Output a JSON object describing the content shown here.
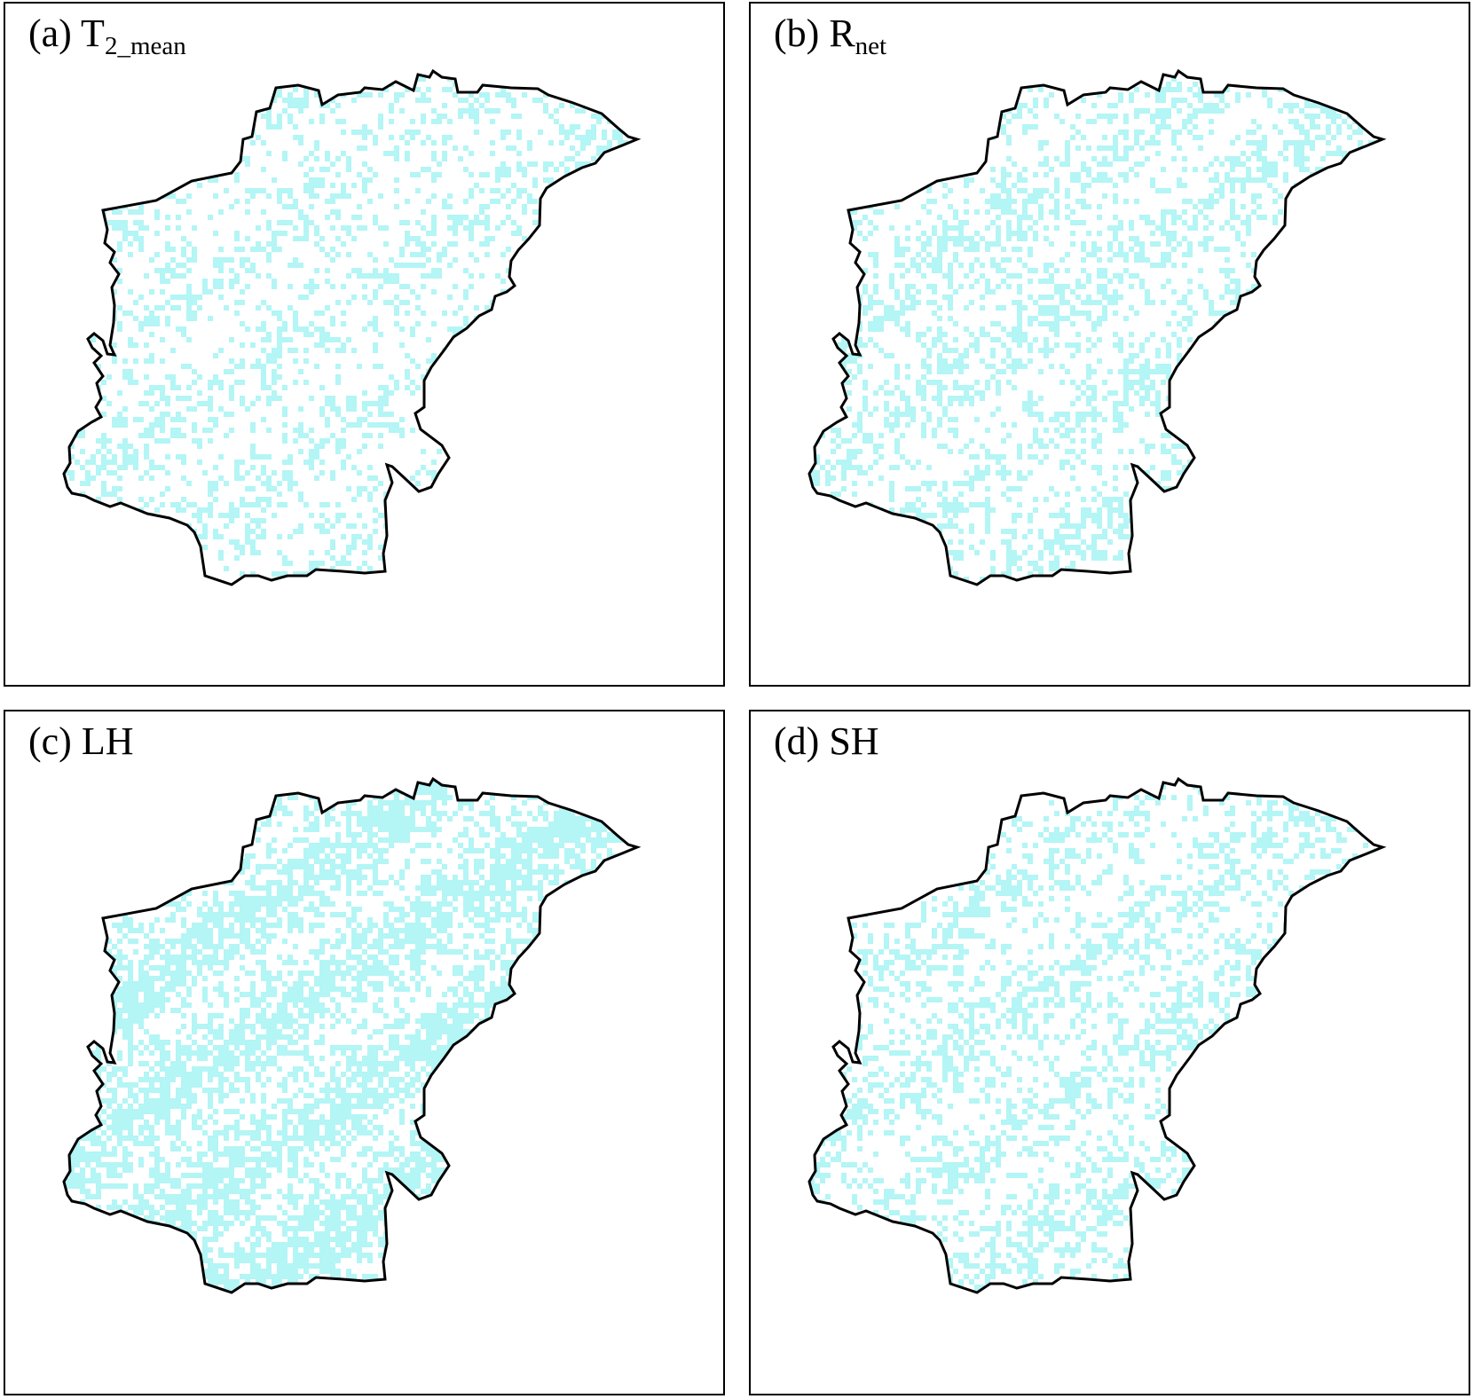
{
  "colors": {
    "background": "#ffffff",
    "region_fill": "#ffffff",
    "highlight": "#b4f5f5",
    "outline": "#000000"
  },
  "panels": [
    {
      "id": "a",
      "prefix": "(a) ",
      "var_main": "T",
      "var_sub": "2_mean",
      "highlight_density": 0.25
    },
    {
      "id": "b",
      "prefix": "(b) ",
      "var_main": "R",
      "var_sub": "net",
      "highlight_density": 0.3
    },
    {
      "id": "c",
      "prefix": "(c) ",
      "var_main": "LH",
      "var_sub": "",
      "highlight_density": 0.52
    },
    {
      "id": "d",
      "prefix": "(d) ",
      "var_main": "SH",
      "var_sub": "",
      "highlight_density": 0.3
    }
  ]
}
